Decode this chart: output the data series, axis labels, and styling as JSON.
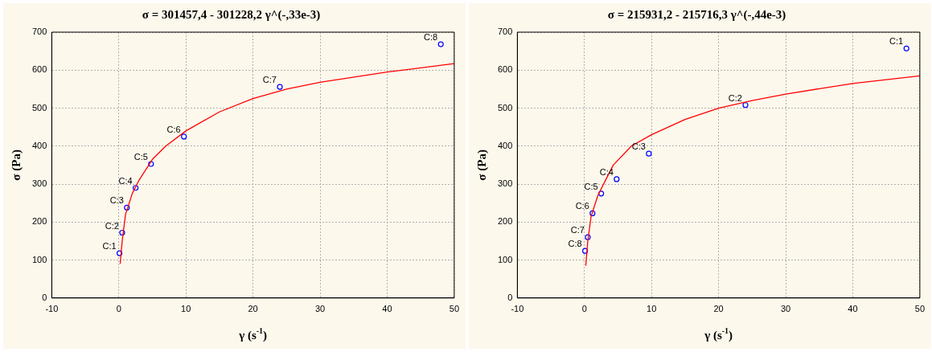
{
  "chart_data": [
    {
      "type": "scatter",
      "title": "σ = 301457,4 - 301228,2 γ^(-,33e-3)",
      "xlabel": "γ (s$^{-1}$)",
      "ylabel": "σ (Pa)",
      "xlim": [
        -10,
        50
      ],
      "xticks": [
        -10,
        0,
        10,
        20,
        30,
        40,
        50
      ],
      "ylim": [
        0,
        700
      ],
      "yticks": [
        0,
        100,
        200,
        300,
        400,
        500,
        600,
        700
      ],
      "grid": true,
      "marker": "circle",
      "series": [
        {
          "type": "scatter",
          "color": "#0000ff",
          "x": [
            0.1,
            0.5,
            1.2,
            2.5,
            4.8,
            9.7,
            24,
            48
          ],
          "values": [
            118,
            172,
            238,
            290,
            353,
            425,
            556,
            668
          ]
        },
        {
          "type": "line",
          "color": "#ff0000",
          "marker": "none",
          "line_style": "solid",
          "x": [
            0.2,
            0.5,
            1,
            2,
            3,
            5,
            7,
            10,
            15,
            20,
            25,
            30,
            40,
            50
          ],
          "values": [
            90,
            150,
            220,
            275,
            310,
            365,
            400,
            440,
            490,
            525,
            550,
            568,
            595,
            617
          ]
        }
      ],
      "annotations": [
        {
          "text": "C:1",
          "x": 0.1,
          "y": 118
        },
        {
          "text": "C:2",
          "x": 0.5,
          "y": 172
        },
        {
          "text": "C:3",
          "x": 1.2,
          "y": 238
        },
        {
          "text": "C:4",
          "x": 2.5,
          "y": 290
        },
        {
          "text": "C:5",
          "x": 4.8,
          "y": 353
        },
        {
          "text": "C:6",
          "x": 9.7,
          "y": 425
        },
        {
          "text": "C:7",
          "x": 24,
          "y": 556
        },
        {
          "text": "C:8",
          "x": 48,
          "y": 668
        }
      ]
    },
    {
      "type": "scatter",
      "title": "σ = 215931,2 - 215716,3 γ^(-,44e-3)",
      "xlabel": "γ (s$^{-1}$)",
      "ylabel": "σ (Pa)",
      "xlim": [
        -10,
        50
      ],
      "xticks": [
        -10,
        0,
        10,
        20,
        30,
        40,
        50
      ],
      "ylim": [
        0,
        700
      ],
      "yticks": [
        0,
        100,
        200,
        300,
        400,
        500,
        600,
        700
      ],
      "grid": true,
      "marker": "circle",
      "series": [
        {
          "type": "scatter",
          "color": "#0000ff",
          "x": [
            48,
            24,
            9.6,
            4.8,
            2.5,
            1.2,
            0.5,
            0.1
          ],
          "values": [
            657,
            508,
            380,
            313,
            275,
            223,
            160,
            124
          ]
        },
        {
          "type": "line",
          "color": "#ff0000",
          "marker": "none",
          "line_style": "solid",
          "x": [
            0.2,
            0.5,
            1,
            2,
            3,
            4.3,
            7,
            10,
            15,
            20,
            25,
            30,
            40,
            50
          ],
          "values": [
            85,
            150,
            215,
            270,
            305,
            350,
            400,
            430,
            470,
            500,
            520,
            537,
            565,
            585
          ]
        }
      ],
      "annotations": [
        {
          "text": "C:1",
          "x": 48,
          "y": 657
        },
        {
          "text": "C:2",
          "x": 24,
          "y": 508
        },
        {
          "text": "C:3",
          "x": 9.6,
          "y": 380
        },
        {
          "text": "C:4",
          "x": 4.8,
          "y": 313
        },
        {
          "text": "C:5",
          "x": 2.5,
          "y": 275
        },
        {
          "text": "C:6",
          "x": 1.2,
          "y": 223
        },
        {
          "text": "C:7",
          "x": 0.5,
          "y": 160
        },
        {
          "text": "C:8",
          "x": 0.1,
          "y": 124
        }
      ]
    }
  ]
}
